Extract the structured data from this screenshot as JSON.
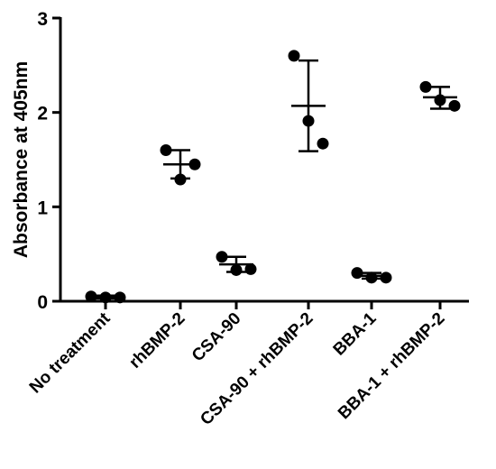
{
  "chart_data": {
    "type": "scatter",
    "title": "",
    "xlabel": "",
    "ylabel": "Absorbance at 405nm",
    "ylim": [
      0,
      3
    ],
    "yticks": [
      "0",
      "1",
      "2",
      "3"
    ],
    "categories": [
      "No treatment",
      "rhBMP-2",
      "CSA-90",
      "CSA-90 + rhBMP-2",
      "BBA-1",
      "BBA-1 + rhBMP-2"
    ],
    "groups": [
      {
        "points": [
          0.05,
          0.04,
          0.04
        ],
        "mean": 0.045,
        "sd_low": 0.03,
        "sd_high": 0.06
      },
      {
        "points": [
          1.6,
          1.29,
          1.45
        ],
        "mean": 1.45,
        "sd_low": 1.3,
        "sd_high": 1.6
      },
      {
        "points": [
          0.47,
          0.33,
          0.34
        ],
        "mean": 0.39,
        "sd_low": 0.31,
        "sd_high": 0.47
      },
      {
        "points": [
          2.6,
          1.91,
          1.67
        ],
        "mean": 2.07,
        "sd_low": 1.59,
        "sd_high": 2.55
      },
      {
        "points": [
          0.3,
          0.25,
          0.25
        ],
        "mean": 0.27,
        "sd_low": 0.24,
        "sd_high": 0.3
      },
      {
        "points": [
          2.27,
          2.13,
          2.07
        ],
        "mean": 2.16,
        "sd_low": 2.04,
        "sd_high": 2.27
      }
    ],
    "grid": false,
    "legend": "none",
    "color": "#000000"
  }
}
